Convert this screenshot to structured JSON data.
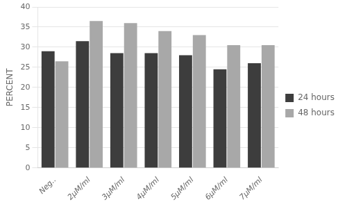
{
  "chart_data": {
    "type": "bar",
    "ylabel": "PERCENT",
    "categories": [
      "Neg..",
      "2μM/ml",
      "3μM/ml",
      "4μM/ml",
      "5μM/ml",
      "6μM/ml",
      "7μM/ml"
    ],
    "series": [
      {
        "name": "24 hours",
        "color": "#3d3d3d",
        "values": [
          29,
          31.5,
          28.5,
          28.5,
          28,
          24.5,
          26
        ]
      },
      {
        "name": "48 hours",
        "color": "#a8a8a8",
        "values": [
          26.5,
          36.5,
          36,
          34,
          33,
          30.5,
          30.5
        ]
      }
    ],
    "ylim": [
      0,
      40
    ],
    "yticks": [
      0,
      5,
      10,
      15,
      20,
      25,
      30,
      35,
      40
    ],
    "grid": true,
    "legend": "right"
  }
}
